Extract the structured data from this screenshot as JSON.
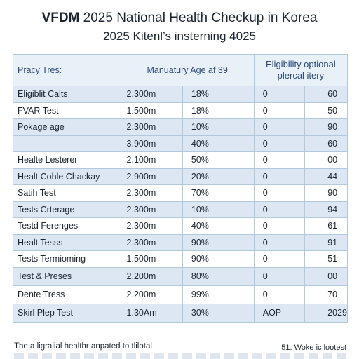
{
  "header": {
    "title_bold": "VFDM",
    "title_rest": " 2025 National Health Checkup in Korea",
    "subtitle": "2025 Kitenl’s insterning 4025"
  },
  "table": {
    "col1": "Pracy Tres:",
    "col2": "Manuatury Age af 39",
    "col3_line1": "Eligibility optional",
    "col3_line2": "plercal itery",
    "rows": [
      {
        "name": "Eligiblit Calts",
        "num": "2.300m",
        "pct": "18%",
        "elig": "0",
        "val": "60",
        "alt": true
      },
      {
        "name": "FVAR Test",
        "num": "1.500m",
        "pct": "18%",
        "elig": "0",
        "val": "50",
        "alt": false
      },
      {
        "name": "Pokage age",
        "num": "2.300m",
        "pct": "10%",
        "elig": "0",
        "val": "90",
        "alt": true
      },
      {
        "name": "",
        "num": "3.900m",
        "pct": "40%",
        "elig": "0",
        "val": "60",
        "alt": true
      },
      {
        "name": "Healte Lesterer",
        "num": "2.100m",
        "pct": "50%",
        "elig": "0",
        "val": "00",
        "alt": false
      },
      {
        "name": "Healt Cohle Chackay",
        "num": "2.900m",
        "pct": "20%",
        "elig": "0",
        "val": "44",
        "alt": true
      },
      {
        "name": "Satih Test",
        "num": "2.300m",
        "pct": "70%",
        "elig": "0",
        "val": "90",
        "alt": false
      },
      {
        "name": "Tests Crterage",
        "num": "2.300m",
        "pct": "10%",
        "elig": "0",
        "val": "94",
        "alt": true
      },
      {
        "name": "Testd Ferenges",
        "num": "2.300m",
        "pct": "40%",
        "elig": "0",
        "val": "61",
        "alt": false
      },
      {
        "name": "Healt Tesss",
        "num": "2.300m",
        "pct": "90%",
        "elig": "0",
        "val": "91",
        "alt": true
      },
      {
        "name": "Tests Termioming",
        "num": "1.500m",
        "pct": "90%",
        "elig": "0",
        "val": "51",
        "alt": false
      },
      {
        "name": "Test & Preses",
        "num": "2.200m",
        "pct": "80%",
        "elig": "0",
        "val": "00",
        "alt": true
      },
      {
        "name": "Dente Tress",
        "num": "2.200m",
        "pct": "99%",
        "elig": "0",
        "val": "70",
        "alt": false
      },
      {
        "name": "Skirl Plep Test",
        "num": "1.30Am",
        "pct": "30%",
        "elig": "AOP",
        "val": "2029",
        "alt": true
      }
    ]
  },
  "footer": {
    "left": "The a ligralial healthr anpated to tlilotal",
    "right": "51. Woke ic lootest"
  }
}
